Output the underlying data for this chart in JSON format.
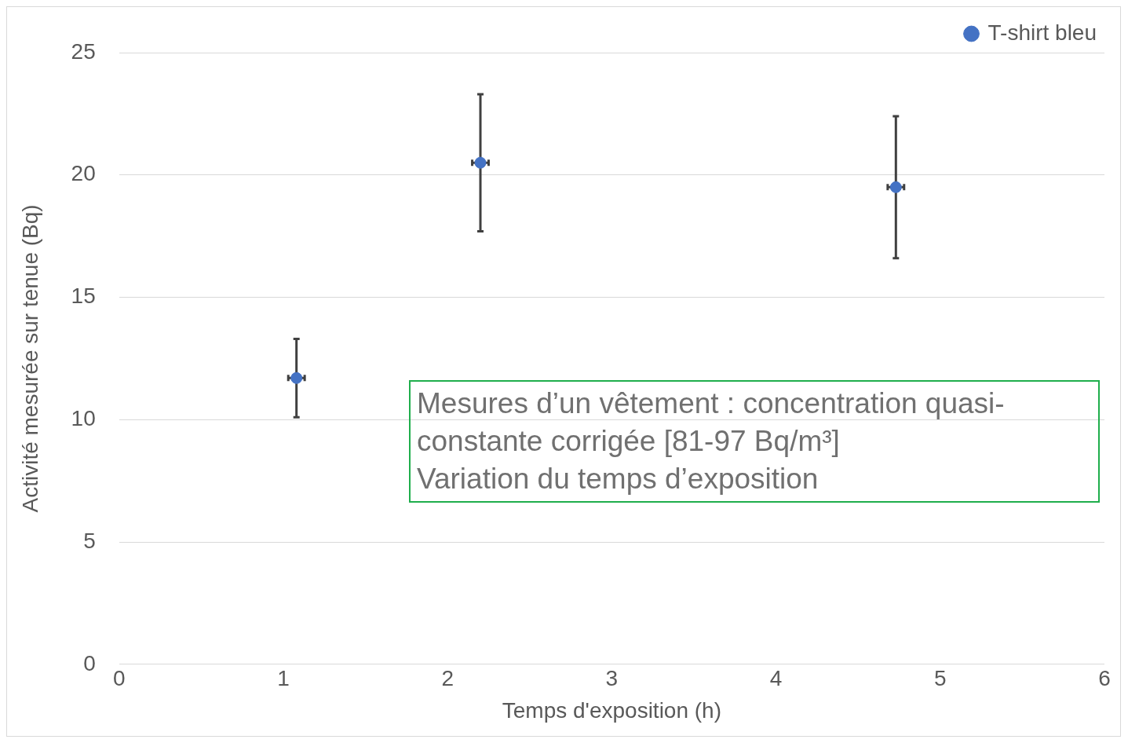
{
  "chart_data": {
    "type": "scatter",
    "xlabel": "Temps d'exposition (h)",
    "ylabel": "Activité mesurée sur tenue (Bq)",
    "annotations": [
      "Mesures d’un vêtement : concentration quasi-constante corrigée [81-97 Bq/m³]",
      "Variation du temps d’exposition"
    ],
    "series": [
      {
        "name": "T-shirt bleu",
        "color": "#4472c4",
        "x": [
          1.08,
          2.2,
          4.73
        ],
        "values": [
          11.7,
          20.5,
          19.5
        ],
        "errors": [
          1.6,
          2.8,
          2.9
        ],
        "xerrors": [
          0.05,
          0.05,
          0.05
        ]
      }
    ],
    "xlim": [
      0,
      6
    ],
    "xticks": [
      0,
      1,
      2,
      3,
      4,
      5,
      6
    ],
    "ylim": [
      0,
      25
    ],
    "yticks": [
      0,
      5,
      10,
      15,
      20,
      25
    ],
    "grid": "y",
    "legend": "top right",
    "marker": "circle"
  }
}
